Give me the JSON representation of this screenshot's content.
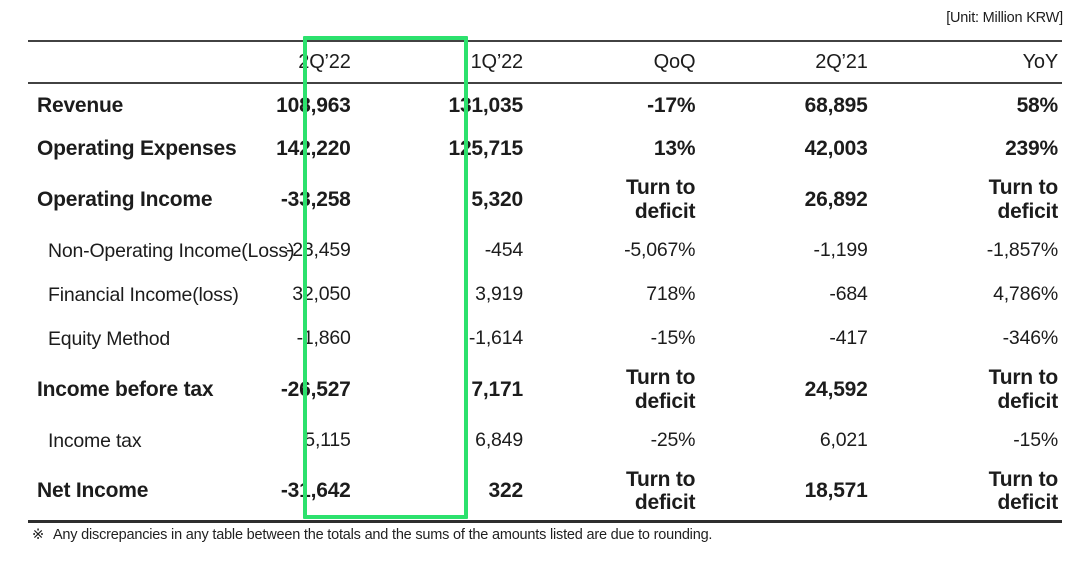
{
  "unit_label": "[Unit: Million KRW]",
  "table": {
    "columns": [
      "",
      "2Q’22",
      "1Q’22",
      "QoQ",
      "2Q’21",
      "YoY"
    ],
    "rows": [
      {
        "label": "Revenue",
        "bold": true,
        "indent": false,
        "values": [
          "108,963",
          "131,035",
          "-17%",
          "68,895",
          "58%"
        ]
      },
      {
        "label": "Operating Expenses",
        "bold": true,
        "indent": false,
        "values": [
          "142,220",
          "125,715",
          "13%",
          "42,003",
          "239%"
        ]
      },
      {
        "label": "Operating Income",
        "bold": true,
        "indent": false,
        "values": [
          "-33,258",
          "5,320",
          "Turn to\ndeficit",
          "26,892",
          "Turn to\ndeficit"
        ]
      },
      {
        "label": "Non-Operating Income(Loss)",
        "bold": false,
        "indent": true,
        "values": [
          "-23,459",
          "-454",
          "-5,067%",
          "-1,199",
          "-1,857%"
        ]
      },
      {
        "label": "Financial Income(loss)",
        "bold": false,
        "indent": true,
        "values": [
          "32,050",
          "3,919",
          "718%",
          "-684",
          "4,786%"
        ]
      },
      {
        "label": "Equity Method",
        "bold": false,
        "indent": true,
        "values": [
          "-1,860",
          "-1,614",
          "-15%",
          "-417",
          "-346%"
        ]
      },
      {
        "label": "Income before tax",
        "bold": true,
        "indent": false,
        "values": [
          "-26,527",
          "7,171",
          "Turn to\ndeficit",
          "24,592",
          "Turn to\ndeficit"
        ]
      },
      {
        "label": "Income tax",
        "bold": false,
        "indent": true,
        "values": [
          "5,115",
          "6,849",
          "-25%",
          "6,021",
          "-15%"
        ]
      },
      {
        "label": "Net Income",
        "bold": true,
        "indent": false,
        "values": [
          "-31,642",
          "322",
          "Turn to\ndeficit",
          "18,571",
          "Turn to\ndeficit"
        ]
      }
    ]
  },
  "highlight": {
    "column": "2Q’22",
    "color": "#2ce16d"
  },
  "footnote": {
    "marker": "※",
    "text": "Any discrepancies in any table between the totals and the sums of the amounts listed are due to rounding."
  }
}
